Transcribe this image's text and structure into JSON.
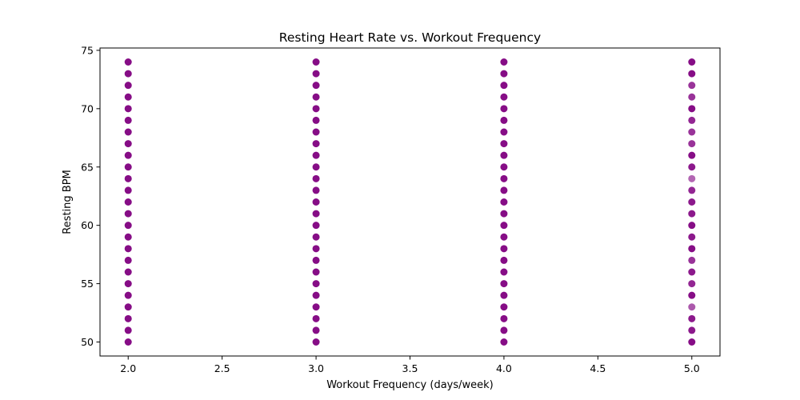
{
  "chart_data": {
    "type": "scatter",
    "title": "Resting Heart Rate vs. Workout Frequency",
    "xlabel": "Workout Frequency (days/week)",
    "ylabel": "Resting BPM",
    "xlim": [
      1.85,
      5.15
    ],
    "ylim": [
      48.8,
      75.2
    ],
    "xticks": [
      2.0,
      2.5,
      3.0,
      3.5,
      4.0,
      4.5,
      5.0
    ],
    "xtick_labels": [
      "2.0",
      "2.5",
      "3.0",
      "3.5",
      "4.0",
      "4.5",
      "5.0"
    ],
    "yticks": [
      50,
      55,
      60,
      65,
      70,
      75
    ],
    "ytick_labels": [
      "50",
      "55",
      "60",
      "65",
      "70",
      "75"
    ],
    "grid": false,
    "legend": "none",
    "marker_color": "#800080",
    "series": [
      {
        "x": [
          2,
          2,
          2,
          2,
          2,
          2,
          2,
          2,
          2,
          2,
          2,
          2,
          2,
          2,
          2,
          2,
          2,
          2,
          2,
          2,
          2,
          2,
          2,
          2,
          2,
          3,
          3,
          3,
          3,
          3,
          3,
          3,
          3,
          3,
          3,
          3,
          3,
          3,
          3,
          3,
          3,
          3,
          3,
          3,
          3,
          3,
          3,
          3,
          3,
          3,
          4,
          4,
          4,
          4,
          4,
          4,
          4,
          4,
          4,
          4,
          4,
          4,
          4,
          4,
          4,
          4,
          4,
          4,
          4,
          4,
          4,
          4,
          4,
          4,
          4,
          5,
          5,
          5,
          5,
          5,
          5,
          5,
          5,
          5,
          5,
          5,
          5,
          5,
          5,
          5,
          5,
          5,
          5,
          5,
          5,
          5,
          5,
          5,
          5,
          5
        ],
        "y": [
          50,
          51,
          52,
          53,
          54,
          55,
          56,
          57,
          58,
          59,
          60,
          61,
          62,
          63,
          64,
          65,
          66,
          67,
          68,
          69,
          70,
          71,
          72,
          73,
          74,
          50,
          51,
          52,
          53,
          54,
          55,
          56,
          57,
          58,
          59,
          60,
          61,
          62,
          63,
          64,
          65,
          66,
          67,
          68,
          69,
          70,
          71,
          72,
          73,
          74,
          50,
          51,
          52,
          53,
          54,
          55,
          56,
          57,
          58,
          59,
          60,
          61,
          62,
          63,
          64,
          65,
          66,
          67,
          68,
          69,
          70,
          71,
          72,
          73,
          74,
          50,
          51,
          52,
          53,
          54,
          55,
          56,
          57,
          58,
          59,
          60,
          61,
          62,
          63,
          64,
          65,
          66,
          67,
          68,
          69,
          70,
          71,
          72,
          73,
          74
        ],
        "alpha": [
          0.95,
          0.95,
          0.95,
          0.95,
          0.95,
          0.95,
          0.95,
          0.95,
          0.95,
          0.95,
          0.95,
          0.95,
          0.95,
          0.95,
          0.95,
          0.95,
          0.95,
          0.95,
          0.95,
          0.95,
          0.95,
          0.95,
          0.95,
          0.95,
          0.95,
          0.95,
          0.95,
          0.95,
          0.95,
          0.95,
          0.95,
          0.95,
          0.95,
          0.95,
          0.95,
          0.95,
          0.95,
          0.95,
          0.95,
          0.95,
          0.95,
          0.95,
          0.95,
          0.95,
          0.95,
          0.95,
          0.95,
          0.95,
          0.95,
          0.95,
          0.95,
          0.95,
          0.95,
          0.95,
          0.95,
          0.95,
          0.95,
          0.95,
          0.95,
          0.95,
          0.95,
          0.95,
          0.95,
          0.95,
          0.95,
          0.95,
          0.95,
          0.95,
          0.95,
          0.95,
          0.95,
          0.95,
          0.95,
          0.95,
          0.95,
          0.95,
          0.9,
          0.9,
          0.65,
          0.95,
          0.85,
          0.9,
          0.8,
          0.95,
          0.9,
          0.95,
          0.9,
          0.9,
          0.85,
          0.6,
          0.9,
          0.95,
          0.8,
          0.8,
          0.85,
          0.95,
          0.8,
          0.8,
          0.95,
          0.95
        ]
      }
    ]
  }
}
